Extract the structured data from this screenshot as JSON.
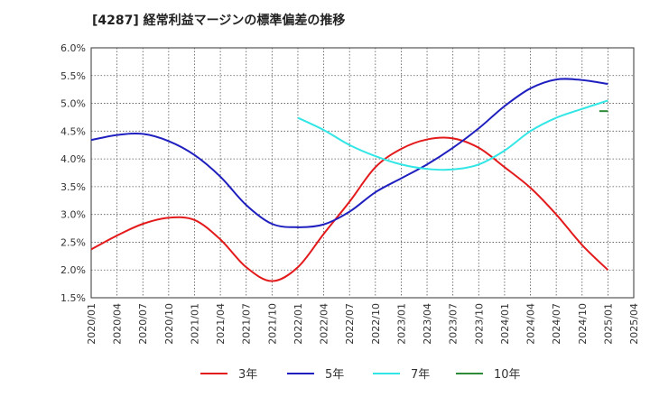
{
  "chart_data": {
    "type": "line",
    "title": "[4287]  経常利益マージンの標準偏差の推移",
    "xlabel": "",
    "ylabel": "",
    "ylim": [
      0.015,
      0.06
    ],
    "y_ticks": [
      "1.5%",
      "2.0%",
      "2.5%",
      "3.0%",
      "3.5%",
      "4.0%",
      "4.5%",
      "5.0%",
      "5.5%",
      "6.0%"
    ],
    "x_ticks": [
      "2020/01",
      "2020/04",
      "2020/07",
      "2020/10",
      "2021/01",
      "2021/04",
      "2021/07",
      "2021/10",
      "2022/01",
      "2022/04",
      "2022/07",
      "2022/10",
      "2023/01",
      "2023/04",
      "2023/07",
      "2023/10",
      "2024/01",
      "2024/04",
      "2024/07",
      "2024/10",
      "2025/01",
      "2025/04"
    ],
    "grid": true,
    "legend_position": "bottom",
    "series": [
      {
        "name": "3年",
        "color": "#e31a1c",
        "points": [
          [
            "2020/01",
            0.0237
          ],
          [
            "2020/04",
            0.0262
          ],
          [
            "2020/07",
            0.0283
          ],
          [
            "2020/10",
            0.0294
          ],
          [
            "2021/01",
            0.029
          ],
          [
            "2021/04",
            0.0255
          ],
          [
            "2021/07",
            0.0205
          ],
          [
            "2021/10",
            0.018
          ],
          [
            "2022/01",
            0.0205
          ],
          [
            "2022/04",
            0.0265
          ],
          [
            "2022/07",
            0.0323
          ],
          [
            "2022/10",
            0.0385
          ],
          [
            "2023/01",
            0.0418
          ],
          [
            "2023/04",
            0.0435
          ],
          [
            "2023/07",
            0.0437
          ],
          [
            "2023/10",
            0.042
          ],
          [
            "2024/01",
            0.0385
          ],
          [
            "2024/04",
            0.0348
          ],
          [
            "2024/07",
            0.03
          ],
          [
            "2024/10",
            0.0245
          ],
          [
            "2025/01",
            0.02
          ]
        ]
      },
      {
        "name": "5年",
        "color": "#1f1fbf",
        "points": [
          [
            "2020/01",
            0.0434
          ],
          [
            "2020/04",
            0.0443
          ],
          [
            "2020/07",
            0.0445
          ],
          [
            "2020/10",
            0.0432
          ],
          [
            "2021/01",
            0.0407
          ],
          [
            "2021/04",
            0.0368
          ],
          [
            "2021/07",
            0.0317
          ],
          [
            "2021/10",
            0.0283
          ],
          [
            "2022/01",
            0.0277
          ],
          [
            "2022/04",
            0.0282
          ],
          [
            "2022/07",
            0.0305
          ],
          [
            "2022/10",
            0.034
          ],
          [
            "2023/01",
            0.0365
          ],
          [
            "2023/04",
            0.039
          ],
          [
            "2023/07",
            0.042
          ],
          [
            "2023/10",
            0.0455
          ],
          [
            "2024/01",
            0.0495
          ],
          [
            "2024/04",
            0.0527
          ],
          [
            "2024/07",
            0.0543
          ],
          [
            "2024/10",
            0.0542
          ],
          [
            "2025/01",
            0.0535
          ]
        ]
      },
      {
        "name": "7年",
        "color": "#33e6e6",
        "points": [
          [
            "2022/01",
            0.0474
          ],
          [
            "2022/04",
            0.0452
          ],
          [
            "2022/07",
            0.0425
          ],
          [
            "2022/10",
            0.0405
          ],
          [
            "2023/01",
            0.039
          ],
          [
            "2023/04",
            0.0382
          ],
          [
            "2023/07",
            0.0381
          ],
          [
            "2023/10",
            0.039
          ],
          [
            "2024/01",
            0.0415
          ],
          [
            "2024/04",
            0.045
          ],
          [
            "2024/07",
            0.0474
          ],
          [
            "2024/10",
            0.049
          ],
          [
            "2025/01",
            0.0505
          ]
        ]
      },
      {
        "name": "10年",
        "color": "#2e8b3a",
        "points": [
          [
            "2024/12",
            0.0486
          ],
          [
            "2025/01",
            0.0486
          ]
        ]
      }
    ]
  }
}
